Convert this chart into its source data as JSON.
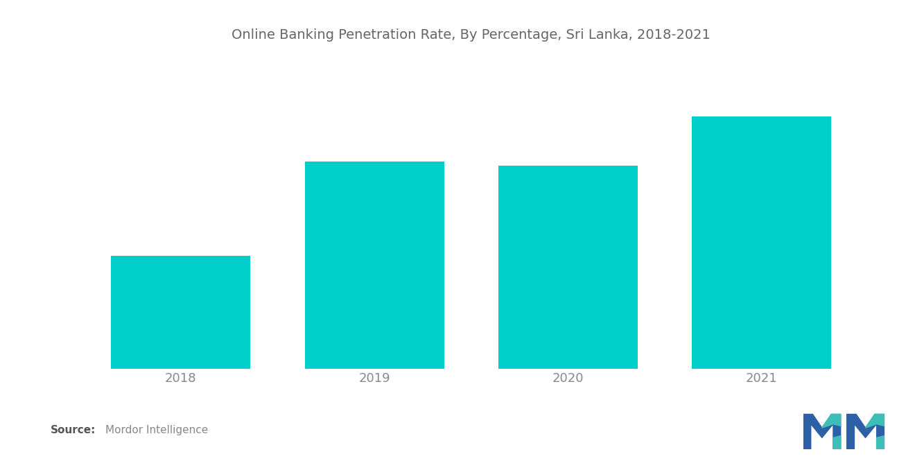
{
  "title": "Online Banking Penetration Rate, By Percentage, Sri Lanka, 2018-2021",
  "categories": [
    "2018",
    "2019",
    "2020",
    "2021"
  ],
  "values": [
    30,
    55,
    54,
    67
  ],
  "bar_color": "#00CEC9",
  "background_color": "#ffffff",
  "title_fontsize": 14,
  "tick_fontsize": 13,
  "source_bold": "Source:",
  "source_normal": "Mordor Intelligence",
  "bar_width": 0.72,
  "ylim": [
    0,
    82
  ],
  "tick_color": "#888888",
  "title_color": "#666666"
}
